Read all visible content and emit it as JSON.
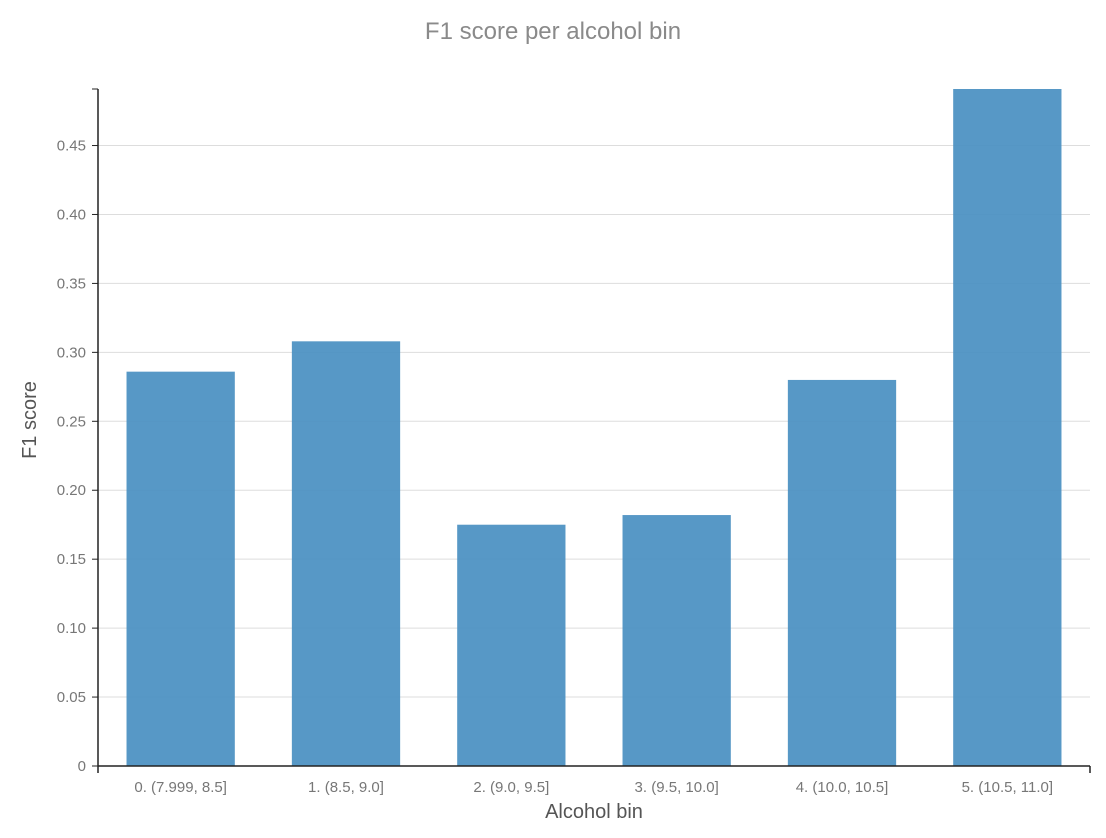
{
  "chart_data": {
    "type": "bar",
    "title": "F1 score per alcohol bin",
    "xlabel": "Alcohol bin",
    "ylabel": "F1 score",
    "categories": [
      "0. (7.999, 8.5]",
      "1. (8.5, 9.0]",
      "2. (9.0, 9.5]",
      "3. (9.5, 10.0]",
      "4. (10.0, 10.5]",
      "5. (10.5, 11.0]"
    ],
    "values": [
      0.286,
      0.308,
      0.175,
      0.182,
      0.28,
      0.491
    ],
    "ylim": [
      0,
      0.491
    ],
    "yticks": [
      0,
      0.05,
      0.1,
      0.15,
      0.2,
      0.25,
      0.3,
      0.35,
      0.4,
      0.45
    ],
    "ytick_labels": [
      "0",
      "0.05",
      "0.10",
      "0.15",
      "0.20",
      "0.25",
      "0.30",
      "0.35",
      "0.40",
      "0.45"
    ],
    "grid": true,
    "bar_color": "#4a90c2",
    "gridline_color": "#dddddd",
    "axis_color": "#222222",
    "text_color": "#777777"
  }
}
